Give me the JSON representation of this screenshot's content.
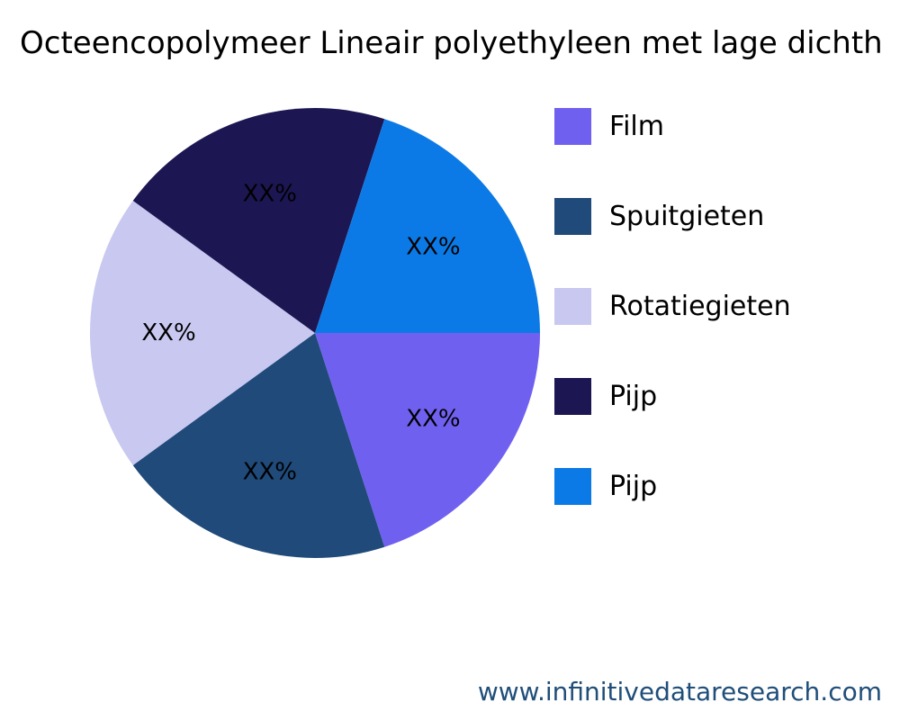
{
  "chart_data": {
    "type": "pie",
    "title": "Octeencopolymeer Lineair polyethyleen met lage dichth",
    "categories": [
      "Film",
      "Spuitgieten",
      "Rotatiegieten",
      "Pijp",
      "Pijp"
    ],
    "values": [
      20,
      20,
      20,
      20,
      20
    ],
    "data_labels": [
      "XX%",
      "XX%",
      "XX%",
      "XX%",
      "XX%"
    ],
    "colors": [
      "#7060f0",
      "#1f4a7a",
      "#c8c8f0",
      "#1c1652",
      "#0c7ae6"
    ],
    "start_direction": "east",
    "direction": "clockwise",
    "legend_position": "right"
  },
  "footer": {
    "url": "www.infinitivedataresearch.com"
  }
}
